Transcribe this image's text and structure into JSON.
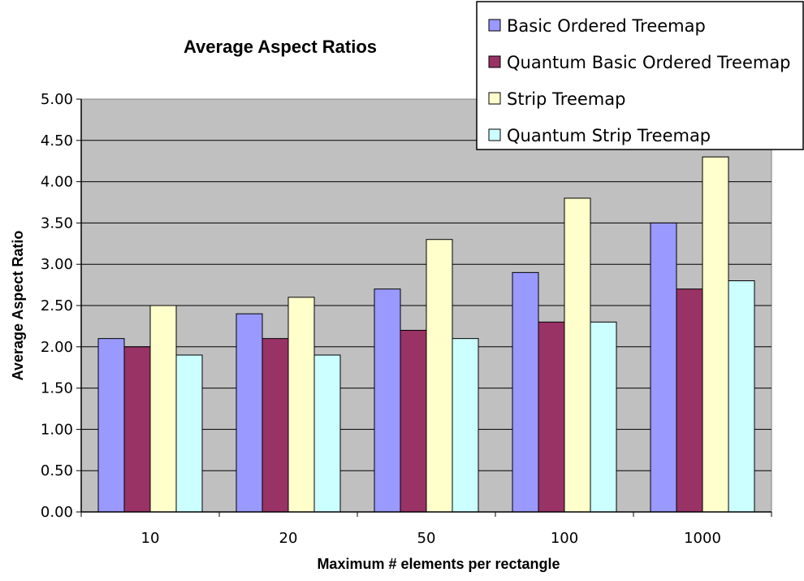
{
  "chart_data": {
    "type": "bar",
    "title": "Average Aspect Ratios",
    "xlabel": "Maximum # elements per rectangle",
    "ylabel": "Average Aspect Ratio",
    "categories": [
      "10",
      "20",
      "50",
      "100",
      "1000"
    ],
    "ylim": [
      0,
      5
    ],
    "yticks": [
      "0.00",
      "0.50",
      "1.00",
      "1.50",
      "2.00",
      "2.50",
      "3.00",
      "3.50",
      "4.00",
      "4.50",
      "5.00"
    ],
    "grid": true,
    "legend_position": "top-right",
    "series": [
      {
        "name": "Basic Ordered Treemap",
        "color": "#9999ff",
        "values": [
          2.1,
          2.4,
          2.7,
          2.9,
          3.5
        ]
      },
      {
        "name": "Quantum Basic Ordered Treemap",
        "color": "#993366",
        "values": [
          2.0,
          2.1,
          2.2,
          2.3,
          2.7
        ]
      },
      {
        "name": "Strip Treemap",
        "color": "#ffffcc",
        "values": [
          2.5,
          2.6,
          3.3,
          3.8,
          4.3
        ]
      },
      {
        "name": "Quantum Strip Treemap",
        "color": "#ccffff",
        "values": [
          1.9,
          1.9,
          2.1,
          2.3,
          2.8
        ]
      }
    ],
    "plot_background": "#c0c0c0"
  }
}
